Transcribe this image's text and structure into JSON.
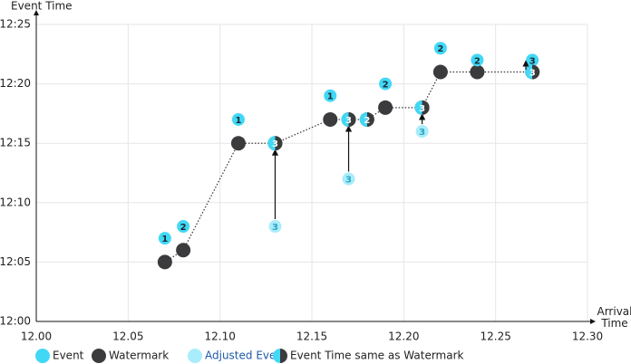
{
  "chart_data": {
    "type": "scatter",
    "y_label": "Event Time",
    "x_label": "Arrival Time",
    "xlim": [
      12,
      12.3
    ],
    "xticks": [
      {
        "value": 12,
        "label": "12.00"
      },
      12.05,
      {
        "value": 12.1,
        "label": "12.10"
      },
      12.15,
      {
        "value": 12.2,
        "label": "12.20"
      },
      12.25,
      {
        "value": 12.3,
        "label": "12.30"
      }
    ],
    "ylim": [
      12,
      12.25
    ],
    "yticks": [
      {
        "value": 12,
        "label": "12:00"
      },
      {
        "value": 12.05,
        "label": "12:05"
      },
      {
        "value": 12.1,
        "label": "12:10"
      },
      {
        "value": 12.15,
        "label": "12:15"
      },
      {
        "value": 12.2,
        "label": "12:20"
      },
      {
        "value": 12.25,
        "label": "12:25"
      }
    ],
    "grid": true,
    "series": [
      {
        "name": "Event",
        "color": "#41d8f6",
        "x": [
          12.07,
          12.08,
          12.11,
          12.16,
          12.19,
          12.22,
          12.24,
          12.27
        ],
        "y": [
          12.07,
          12.08,
          12.17,
          12.19,
          12.2,
          12.23,
          12.22,
          12.22
        ],
        "labels": [
          "1",
          "2",
          "1",
          "1",
          "2",
          "2",
          "2",
          "3"
        ]
      },
      {
        "name": "Watermark",
        "color": "#3b3b3d",
        "x": [
          12.07,
          12.08,
          12.11,
          12.13,
          12.16,
          12.17,
          12.18,
          12.19,
          12.21,
          12.22,
          12.24,
          12.27
        ],
        "y": [
          12.05,
          12.06,
          12.15,
          12.15,
          12.17,
          12.17,
          12.17,
          12.18,
          12.18,
          12.21,
          12.21,
          12.21
        ]
      },
      {
        "name": "Adjusted Event",
        "color": "#a9ecfb",
        "x": [
          12.13,
          12.17,
          12.21
        ],
        "y": [
          12.08,
          12.12,
          12.16
        ],
        "labels": [
          "3",
          "3",
          "3"
        ]
      },
      {
        "name": "Event Time same as Watermark",
        "color": "#41d8f6",
        "x": [
          12.13,
          12.17,
          12.18,
          12.21,
          12.27
        ],
        "y": [
          12.15,
          12.17,
          12.17,
          12.18,
          12.21
        ],
        "labels": [
          "3",
          "3",
          "2",
          "3",
          "3"
        ]
      }
    ]
  }
}
